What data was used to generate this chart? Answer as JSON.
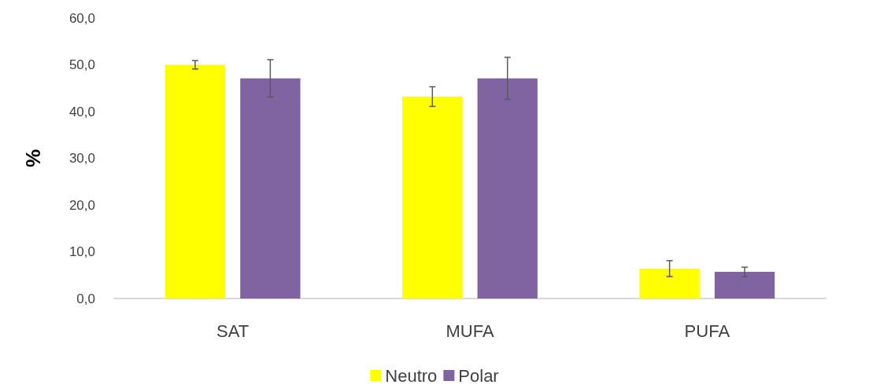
{
  "chart_data": {
    "type": "bar",
    "ylabel": "%",
    "categories": [
      "SAT",
      "MUFA",
      "PUFA"
    ],
    "series": [
      {
        "name": "Neutro",
        "color": "#ffff00",
        "values": [
          50.0,
          43.2,
          6.4
        ],
        "errors": [
          0.9,
          2.1,
          1.7
        ]
      },
      {
        "name": "Polar",
        "color": "#8064a2",
        "values": [
          47.1,
          47.1,
          5.7
        ],
        "errors": [
          4.0,
          4.5,
          1.0
        ]
      }
    ],
    "ylim": [
      0,
      60
    ],
    "yticks": [
      {
        "value": 0,
        "label": "0,0"
      },
      {
        "value": 10,
        "label": "10,0"
      },
      {
        "value": 20,
        "label": "20,0"
      },
      {
        "value": 30,
        "label": "30,0"
      },
      {
        "value": 40,
        "label": "40,0"
      },
      {
        "value": 50,
        "label": "50,0"
      },
      {
        "value": 60,
        "label": "60,0"
      }
    ],
    "grid": false,
    "legend": "bottom"
  }
}
